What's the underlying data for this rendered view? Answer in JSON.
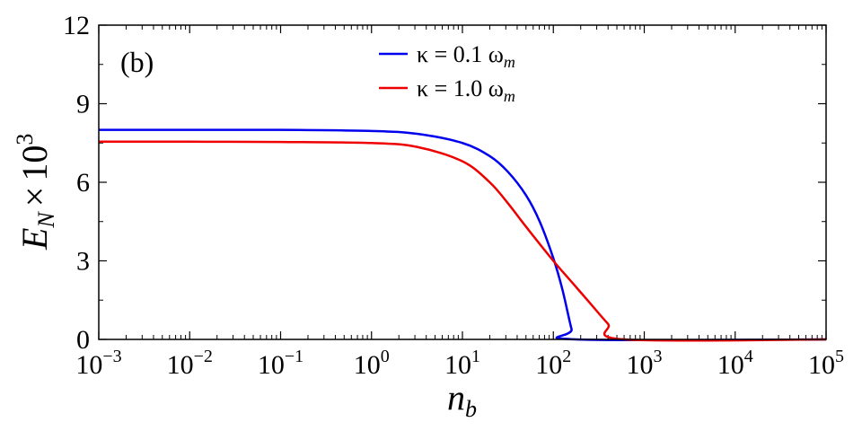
{
  "chart_data": {
    "type": "line",
    "panel_label": "(b)",
    "xscale": "log",
    "xlabel": {
      "base": "n",
      "sub": "b"
    },
    "ylabel": {
      "base": "E",
      "sub": "N",
      "times": "×",
      "ten": "10",
      "exp": "3"
    },
    "xlim": [
      -3,
      5
    ],
    "ylim": [
      0,
      12
    ],
    "x_ticks": [
      {
        "base": "10",
        "exp": "−3",
        "log": -3
      },
      {
        "base": "10",
        "exp": "−2",
        "log": -2
      },
      {
        "base": "10",
        "exp": "−1",
        "log": -1
      },
      {
        "base": "10",
        "exp": "0",
        "log": 0
      },
      {
        "base": "10",
        "exp": "1",
        "log": 1
      },
      {
        "base": "10",
        "exp": "2",
        "log": 2
      },
      {
        "base": "10",
        "exp": "3",
        "log": 3
      },
      {
        "base": "10",
        "exp": "4",
        "log": 4
      },
      {
        "base": "10",
        "exp": "5",
        "log": 5
      }
    ],
    "y_ticks": [
      "0",
      "3",
      "6",
      "9",
      "12"
    ],
    "legend_position": "top-center",
    "series": [
      {
        "name": "κ = 0.1 ω",
        "name_sub": "m",
        "color": "#0000ee",
        "points": [
          [
            -3,
            8.0
          ],
          [
            -2,
            8.0
          ],
          [
            -1,
            8.0
          ],
          [
            0,
            7.96
          ],
          [
            0.5,
            7.85
          ],
          [
            1,
            7.5
          ],
          [
            1.3,
            7.0
          ],
          [
            1.5,
            6.4
          ],
          [
            1.7,
            5.5
          ],
          [
            1.85,
            4.5
          ],
          [
            2.0,
            3.1
          ],
          [
            2.1,
            1.9
          ],
          [
            2.2,
            0.4
          ],
          [
            2.25,
            0.0
          ],
          [
            5,
            0.0
          ]
        ]
      },
      {
        "name": "κ = 1.0 ω",
        "name_sub": "m",
        "color": "#ee0000",
        "points": [
          [
            -3,
            7.55
          ],
          [
            -2,
            7.55
          ],
          [
            -1,
            7.54
          ],
          [
            0,
            7.5
          ],
          [
            0.5,
            7.35
          ],
          [
            1,
            6.8
          ],
          [
            1.3,
            6.0
          ],
          [
            1.5,
            5.2
          ],
          [
            1.7,
            4.3
          ],
          [
            2.0,
            3.0
          ],
          [
            2.2,
            2.2
          ],
          [
            2.4,
            1.4
          ],
          [
            2.6,
            0.6
          ],
          [
            2.78,
            0.0
          ],
          [
            5,
            0.0
          ]
        ]
      }
    ]
  }
}
